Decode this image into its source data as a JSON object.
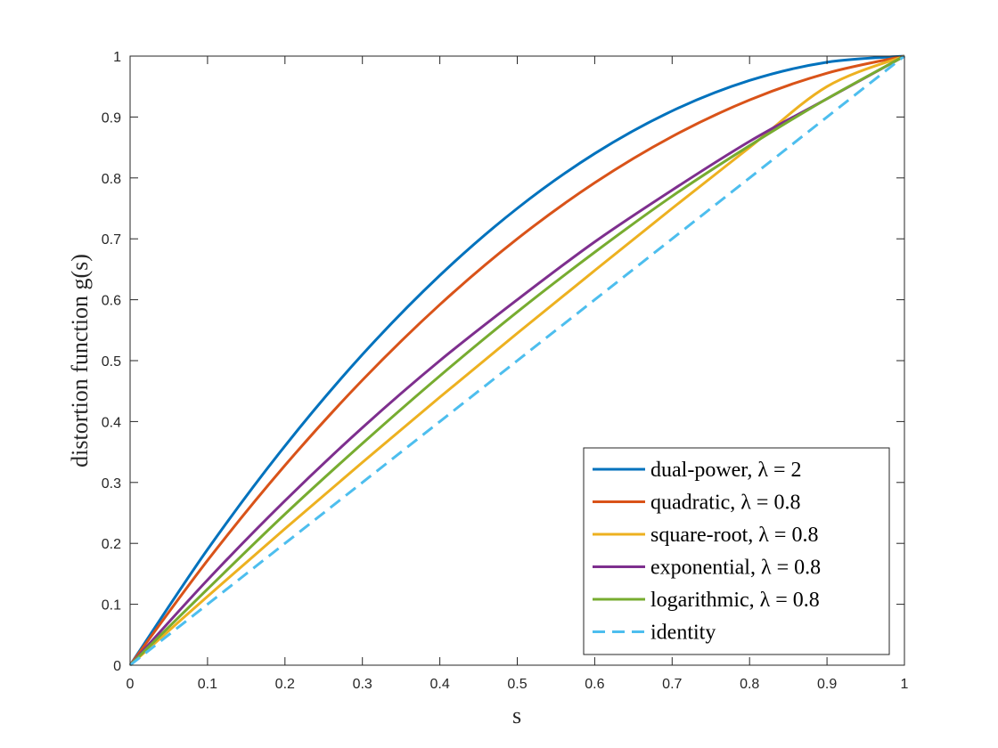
{
  "chart_data": {
    "type": "line",
    "xlabel": "s",
    "ylabel": "distortion function g(s)",
    "xlim": [
      0,
      1
    ],
    "ylim": [
      0,
      1
    ],
    "xticks": [
      "0",
      "0.1",
      "0.2",
      "0.3",
      "0.4",
      "0.5",
      "0.6",
      "0.7",
      "0.8",
      "0.9",
      "1"
    ],
    "yticks": [
      "0",
      "0.1",
      "0.2",
      "0.3",
      "0.4",
      "0.5",
      "0.6",
      "0.7",
      "0.8",
      "0.9",
      "1"
    ],
    "grid": false,
    "legend_position": "bottom-right",
    "x": [
      0,
      0.1,
      0.2,
      0.3,
      0.4,
      0.5,
      0.6,
      0.7,
      0.8,
      0.9,
      1
    ],
    "series": [
      {
        "name": "dual-power, λ = 2",
        "color": "#0072BD",
        "dashed": false,
        "values": [
          0,
          0.19,
          0.36,
          0.51,
          0.64,
          0.75,
          0.84,
          0.91,
          0.96,
          0.99,
          1
        ]
      },
      {
        "name": "quadratic, λ = 0.8",
        "color": "#D95319",
        "dashed": false,
        "values": [
          0,
          0.172,
          0.328,
          0.468,
          0.592,
          0.7,
          0.792,
          0.868,
          0.928,
          0.972,
          1
        ]
      },
      {
        "name": "square-root, λ = 0.8",
        "color": "#EDB120",
        "dashed": false,
        "values": [
          0,
          0.113,
          0.224,
          0.333,
          0.44,
          0.545,
          0.648,
          0.75,
          0.85,
          0.95,
          1
        ]
      },
      {
        "name": "exponential, λ = 0.8",
        "color": "#7E2F8E",
        "dashed": false,
        "values": [
          0,
          0.14,
          0.27,
          0.39,
          0.5,
          0.6,
          0.695,
          0.78,
          0.86,
          0.93,
          1
        ]
      },
      {
        "name": "logarithmic, λ = 0.8",
        "color": "#77AC30",
        "dashed": false,
        "values": [
          0,
          0.125,
          0.248,
          0.364,
          0.475,
          0.58,
          0.678,
          0.77,
          0.853,
          0.93,
          1
        ]
      },
      {
        "name": "identity",
        "color": "#4DBEEE",
        "dashed": true,
        "values": [
          0,
          0.1,
          0.2,
          0.3,
          0.4,
          0.5,
          0.6,
          0.7,
          0.8,
          0.9,
          1
        ]
      }
    ]
  }
}
